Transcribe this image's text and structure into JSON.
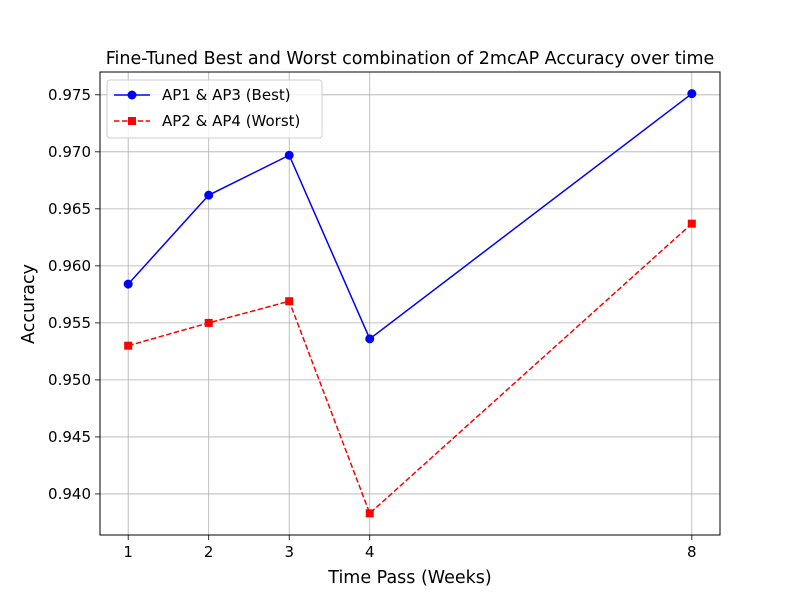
{
  "chart_data": {
    "type": "line",
    "title": "Fine-Tuned Best and Worst combination of 2mcAP Accuracy over time",
    "xlabel": "Time Pass (Weeks)",
    "ylabel": "Accuracy",
    "x": [
      1,
      2,
      3,
      4,
      8
    ],
    "x_ticks": [
      1,
      2,
      3,
      4,
      8
    ],
    "x_tick_labels": [
      "1",
      "2",
      "3",
      "4",
      "8"
    ],
    "xlim": [
      0.65,
      8.35
    ],
    "ylim": [
      0.9364,
      0.977
    ],
    "y_ticks": [
      0.94,
      0.945,
      0.95,
      0.955,
      0.96,
      0.965,
      0.97,
      0.975
    ],
    "y_tick_labels": [
      "0.940",
      "0.945",
      "0.950",
      "0.955",
      "0.960",
      "0.965",
      "0.970",
      "0.975"
    ],
    "grid": true,
    "legend_position": "top-left",
    "series": [
      {
        "name": "AP1 & AP3 (Best)",
        "values": [
          0.9584,
          0.9662,
          0.9697,
          0.9536,
          0.9751
        ],
        "color": "#0000ff",
        "marker": "circle",
        "line_style": "solid"
      },
      {
        "name": "AP2 & AP4 (Worst)",
        "values": [
          0.953,
          0.955,
          0.9569,
          0.9383,
          0.9637
        ],
        "color": "#ff0000",
        "marker": "square",
        "line_style": "dashed"
      }
    ]
  }
}
